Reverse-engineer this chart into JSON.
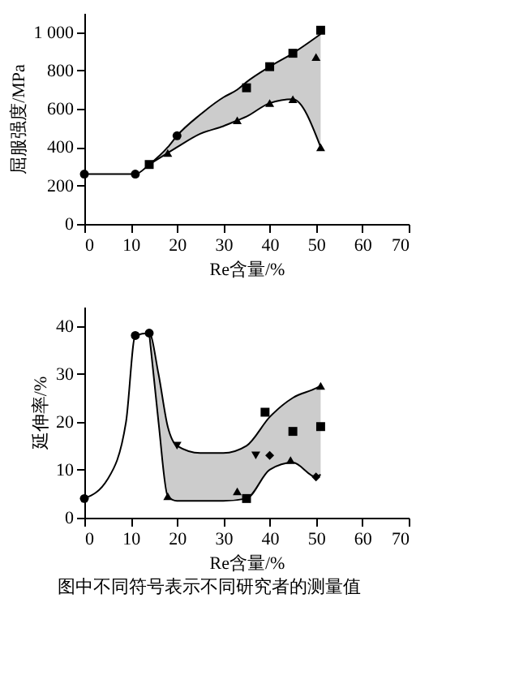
{
  "chart_data": [
    {
      "type": "scatter",
      "xlabel": "Re含量/%",
      "ylabel": "屈服强度/MPa",
      "xlim": [
        0,
        70
      ],
      "xticks": [
        0,
        10,
        20,
        30,
        40,
        50,
        60,
        70
      ],
      "ylim": [
        0,
        1100
      ],
      "yticks": [
        0,
        200,
        400,
        600,
        800,
        {
          "value": 1000,
          "label": "1 000"
        }
      ],
      "grid": false,
      "series": [
        {
          "type": "line",
          "color": "#000000",
          "marker": "none",
          "x": [
            0,
            11,
            14,
            18,
            20,
            25,
            30,
            33,
            35,
            40,
            45,
            51
          ],
          "values": [
            260,
            260,
            310,
            400,
            460,
            570,
            660,
            700,
            740,
            820,
            890,
            990
          ],
          "lower": [
            null,
            null,
            310,
            370,
            400,
            470,
            510,
            540,
            560,
            630,
            650,
            400
          ],
          "upper": [
            null,
            null,
            310,
            400,
            460,
            570,
            660,
            700,
            740,
            820,
            890,
            990
          ]
        },
        {
          "type": "line",
          "color": "#000000",
          "marker": "none",
          "x": [
            14,
            18,
            20,
            25,
            30,
            33,
            35,
            40,
            45,
            51
          ],
          "values": [
            310,
            370,
            400,
            470,
            510,
            540,
            560,
            630,
            650,
            400
          ]
        },
        {
          "color": "#000000",
          "marker": "circle",
          "x": [
            0,
            11,
            20
          ],
          "values": [
            260,
            260,
            460
          ]
        },
        {
          "color": "#000000",
          "marker": "square",
          "x": [
            14,
            35,
            40,
            45,
            51
          ],
          "values": [
            310,
            710,
            820,
            890,
            1010
          ]
        },
        {
          "color": "#000000",
          "marker": "triangle",
          "x": [
            18,
            33,
            40,
            45,
            50,
            51
          ],
          "values": [
            370,
            540,
            630,
            650,
            870,
            400
          ]
        }
      ]
    },
    {
      "type": "scatter",
      "xlabel": "Re含量/%",
      "ylabel": "延伸率/%",
      "xlim": [
        0,
        70
      ],
      "xticks": [
        0,
        10,
        20,
        30,
        40,
        50,
        60,
        70
      ],
      "ylim": [
        0,
        44
      ],
      "yticks": [
        0,
        10,
        20,
        30,
        40
      ],
      "grid": false,
      "annotations": [
        "图中不同符号表示不同研究者的测量值"
      ],
      "series": [
        {
          "type": "line",
          "color": "#000000",
          "marker": "none",
          "x": [
            0,
            5,
            9,
            11,
            14,
            16,
            18,
            20,
            25,
            30,
            35,
            40,
            45,
            50,
            51
          ],
          "values": [
            4,
            8,
            20,
            38,
            38.5,
            30,
            19,
            15,
            13.5,
            13.5,
            15,
            21,
            25,
            27,
            27.5
          ],
          "lower": [
            null,
            null,
            null,
            null,
            38.5,
            20,
            4.5,
            3.5,
            3.5,
            3.5,
            4,
            10,
            11.5,
            8.5,
            9
          ],
          "upper": [
            null,
            null,
            null,
            null,
            38.5,
            30,
            19,
            15,
            13.5,
            13.5,
            15,
            21,
            25,
            27,
            27.5
          ]
        },
        {
          "type": "line",
          "color": "#000000",
          "marker": "none",
          "x": [
            14,
            16,
            18,
            20,
            25,
            30,
            35,
            40,
            45,
            50,
            51
          ],
          "values": [
            38.5,
            20,
            4.5,
            3.5,
            3.5,
            3.5,
            4,
            10,
            11.5,
            8.5,
            9
          ]
        },
        {
          "color": "#000000",
          "marker": "circle",
          "x": [
            0,
            11,
            14
          ],
          "values": [
            4,
            38,
            38.5
          ]
        },
        {
          "color": "#000000",
          "marker": "triangle",
          "x": [
            18,
            33,
            44.5,
            51
          ],
          "values": [
            4.5,
            5.5,
            12,
            27.5
          ]
        },
        {
          "color": "#000000",
          "marker": "triangle-down",
          "x": [
            20,
            37
          ],
          "values": [
            15,
            13
          ]
        },
        {
          "color": "#000000",
          "marker": "square",
          "x": [
            35,
            39,
            45,
            51
          ],
          "values": [
            4,
            22,
            18,
            19
          ]
        },
        {
          "color": "#000000",
          "marker": "diamond",
          "x": [
            40,
            50
          ],
          "values": [
            13,
            8.5
          ]
        }
      ]
    }
  ]
}
